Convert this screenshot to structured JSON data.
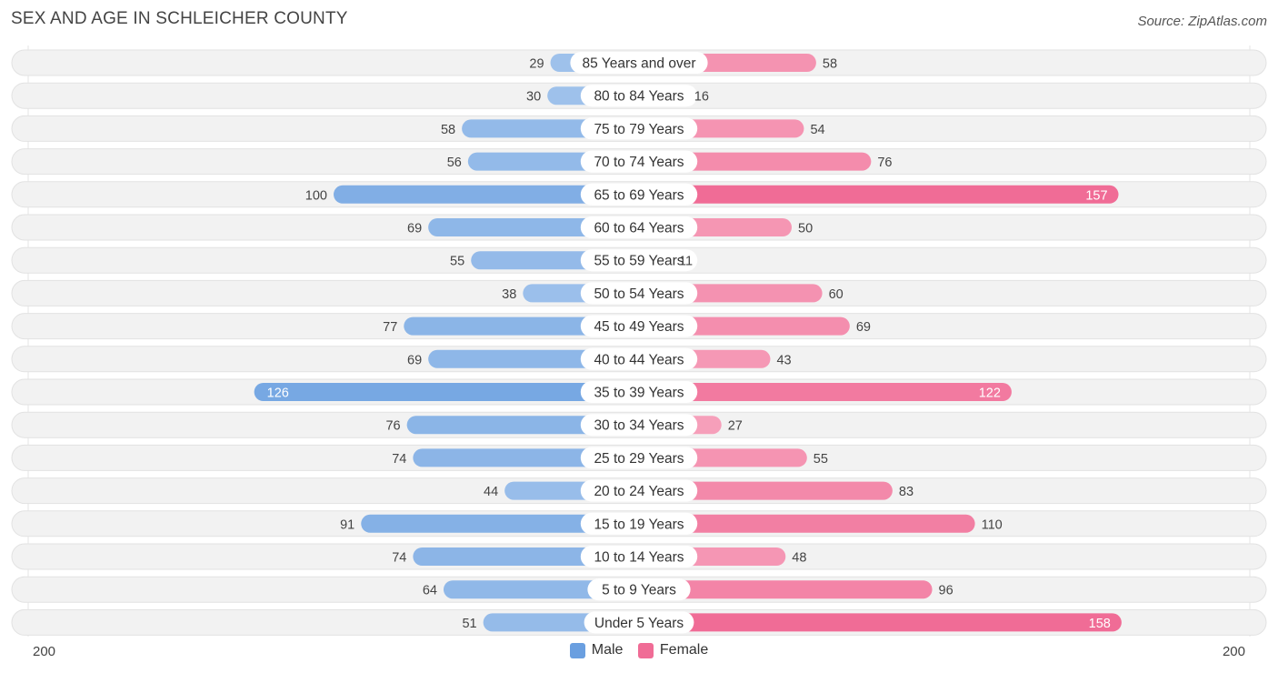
{
  "title": "SEX AND AGE IN SCHLEICHER COUNTY",
  "source": "Source: ZipAtlas.com",
  "colors": {
    "male": "#6a9fe0",
    "male_light": "#aac9ee",
    "female": "#f06c96",
    "female_light": "#f7a9c1",
    "row_bg": "#f2f2f2"
  },
  "legend": {
    "male": "Male",
    "female": "Female"
  },
  "axis": {
    "left_label": "200",
    "right_label": "200"
  },
  "chart_data": {
    "type": "bar",
    "orientation": "horizontal-diverging",
    "title": "SEX AND AGE IN SCHLEICHER COUNTY",
    "xlim": [
      -200,
      200
    ],
    "categories": [
      "85 Years and over",
      "80 to 84 Years",
      "75 to 79 Years",
      "70 to 74 Years",
      "65 to 69 Years",
      "60 to 64 Years",
      "55 to 59 Years",
      "50 to 54 Years",
      "45 to 49 Years",
      "40 to 44 Years",
      "35 to 39 Years",
      "30 to 34 Years",
      "25 to 29 Years",
      "20 to 24 Years",
      "15 to 19 Years",
      "10 to 14 Years",
      "5 to 9 Years",
      "Under 5 Years"
    ],
    "series": [
      {
        "name": "Male",
        "values": [
          29,
          30,
          58,
          56,
          100,
          69,
          55,
          38,
          77,
          69,
          126,
          76,
          74,
          44,
          91,
          74,
          64,
          51
        ]
      },
      {
        "name": "Female",
        "values": [
          58,
          16,
          54,
          76,
          157,
          50,
          11,
          60,
          69,
          43,
          122,
          27,
          55,
          83,
          110,
          48,
          96,
          158
        ]
      }
    ],
    "legend_position": "bottom-center"
  }
}
